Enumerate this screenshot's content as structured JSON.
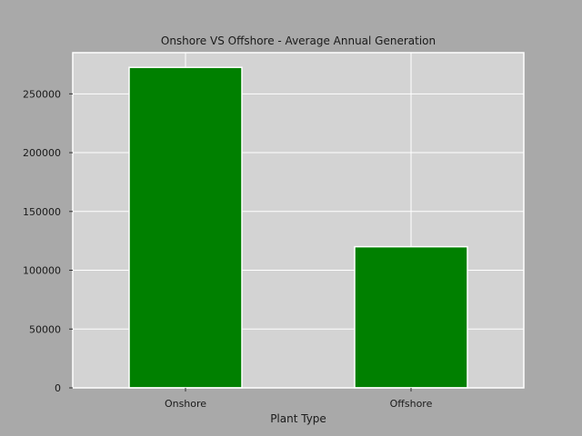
{
  "chart_data": {
    "type": "bar",
    "title": "Onshore VS Offshore - Average Annual Generation",
    "xlabel": "Plant Type",
    "ylabel": "",
    "categories": [
      "Onshore",
      "Offshore"
    ],
    "values": [
      272500,
      120000
    ],
    "ylim": [
      0,
      285000
    ],
    "yticks": [
      0,
      50000,
      100000,
      150000,
      200000,
      250000
    ],
    "ytick_labels": [
      "0",
      "50000",
      "100000",
      "150000",
      "200000",
      "250000"
    ],
    "grid": true,
    "legend": "none",
    "colors": {
      "bar": "#008000",
      "plot_background": "#d3d3d3",
      "figure_background": "#a9a9a9",
      "grid": "#ffffff"
    }
  }
}
